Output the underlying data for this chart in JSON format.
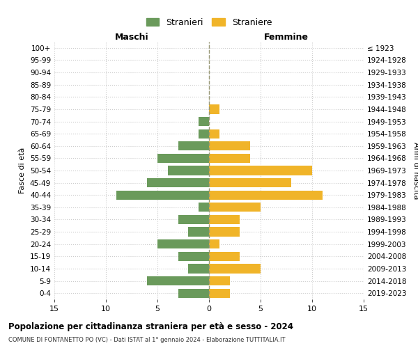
{
  "age_groups": [
    "100+",
    "95-99",
    "90-94",
    "85-89",
    "80-84",
    "75-79",
    "70-74",
    "65-69",
    "60-64",
    "55-59",
    "50-54",
    "45-49",
    "40-44",
    "35-39",
    "30-34",
    "25-29",
    "20-24",
    "15-19",
    "10-14",
    "5-9",
    "0-4"
  ],
  "birth_years": [
    "≤ 1923",
    "1924-1928",
    "1929-1933",
    "1934-1938",
    "1939-1943",
    "1944-1948",
    "1949-1953",
    "1954-1958",
    "1959-1963",
    "1964-1968",
    "1969-1973",
    "1974-1978",
    "1979-1983",
    "1984-1988",
    "1989-1993",
    "1994-1998",
    "1999-2003",
    "2004-2008",
    "2009-2013",
    "2014-2018",
    "2019-2023"
  ],
  "males": [
    0,
    0,
    0,
    0,
    0,
    0,
    1,
    1,
    3,
    5,
    4,
    6,
    9,
    1,
    3,
    2,
    5,
    3,
    2,
    6,
    3
  ],
  "females": [
    0,
    0,
    0,
    0,
    0,
    1,
    0,
    1,
    4,
    4,
    10,
    8,
    11,
    5,
    3,
    3,
    1,
    3,
    5,
    2,
    2
  ],
  "male_color": "#6a9a5b",
  "female_color": "#f0b429",
  "dashed_line_color": "#999977",
  "grid_color": "#cccccc",
  "xlim": 15,
  "title": "Popolazione per cittadinanza straniera per età e sesso - 2024",
  "subtitle": "COMUNE DI FONTANETTO PO (VC) - Dati ISTAT al 1° gennaio 2024 - Elaborazione TUTTITALIA.IT",
  "ylabel_left": "Fasce di età",
  "ylabel_right": "Anni di nascita",
  "legend_male": "Stranieri",
  "legend_female": "Straniere",
  "maschi_label": "Maschi",
  "femmine_label": "Femmine",
  "bar_height": 0.75
}
